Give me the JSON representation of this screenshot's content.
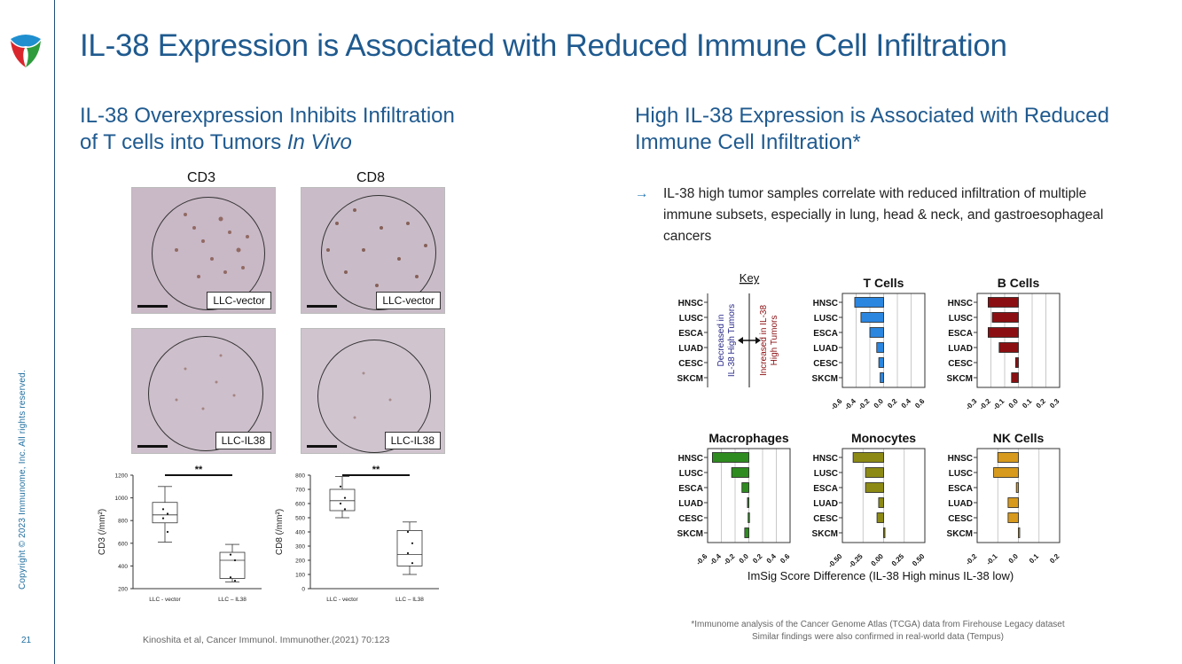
{
  "slide": {
    "title": "IL-38 Expression is Associated with Reduced Immune Cell Infiltration",
    "page_number": "21",
    "copyright": "Copyright © 2023 Immunome, Inc. All rights reserved."
  },
  "left": {
    "subtitle_line1": "IL-38 Overexpression Inhibits Infiltration",
    "subtitle_line2_prefix": "of T cells into Tumors ",
    "subtitle_line2_italic": "In Vivo",
    "col_cd3": "CD3",
    "col_cd8": "CD8",
    "panels": [
      {
        "label": "LLC-vector"
      },
      {
        "label": "LLC-vector"
      },
      {
        "label": "LLC-IL38"
      },
      {
        "label": "LLC-IL38"
      }
    ],
    "footnote": "Kinoshita et al, Cancer Immunol. Immunother.(2021) 70:123"
  },
  "right": {
    "subtitle_line1": "High IL-38 Expression is Associated with Reduced",
    "subtitle_line2": "Immune Cell Infiltration*",
    "bullet_arrow": "→",
    "bullet": "IL-38 high tumor samples correlate with reduced infiltration of multiple immune subsets, especially in lung, head & neck, and gastroesophageal cancers",
    "footnote_line1": "*Immunome analysis of the Cancer Genome Atlas (TCGA) data from Firehouse Legacy dataset",
    "footnote_line2": "Similar findings were also confirmed in real-world data (Tempus)"
  },
  "key": {
    "title": "Key",
    "left_text_1": "Decreased in",
    "left_text_2": "IL-38 High Tumors",
    "right_text_1": "Increased in IL-38",
    "right_text_2": "High Tumors"
  },
  "colors": {
    "title": "#1f5a8f",
    "t_cells": "#2b86e0",
    "b_cells": "#8b0f12",
    "macrophages": "#2e8b1f",
    "monocytes": "#8c8a14",
    "nk_cells": "#d89a1c",
    "key_blue": "#2a2a8a",
    "key_red": "#8b0f12"
  },
  "chart_data": [
    {
      "type": "bar",
      "title": "T Cells",
      "categories": [
        "HNSC",
        "LUSC",
        "ESCA",
        "LUAD",
        "CESC",
        "SKCM"
      ],
      "values": [
        -0.42,
        -0.33,
        -0.2,
        -0.1,
        -0.07,
        -0.05
      ],
      "xlim": [
        -0.6,
        0.6
      ],
      "xticks": [
        "-0.6",
        "-0.4",
        "-0.2",
        "0.0",
        "0.2",
        "0.4",
        "0.6"
      ],
      "xticks_num": [
        -0.6,
        -0.4,
        -0.2,
        0.0,
        0.2,
        0.4,
        0.6
      ],
      "color_key": "t_cells"
    },
    {
      "type": "bar",
      "title": "B Cells",
      "categories": [
        "HNSC",
        "LUSC",
        "ESCA",
        "LUAD",
        "CESC",
        "SKCM"
      ],
      "values": [
        -0.22,
        -0.19,
        -0.22,
        -0.14,
        -0.02,
        -0.05
      ],
      "xlim": [
        -0.3,
        0.3
      ],
      "xticks": [
        "-0.3",
        "-0.2",
        "-0.1",
        "0.0",
        "0.1",
        "0.2",
        "0.3"
      ],
      "xticks_num": [
        -0.3,
        -0.2,
        -0.1,
        0.0,
        0.1,
        0.2,
        0.3
      ],
      "color_key": "b_cells"
    },
    {
      "type": "bar",
      "title": "Macrophages",
      "categories": [
        "HNSC",
        "LUSC",
        "ESCA",
        "LUAD",
        "CESC",
        "SKCM"
      ],
      "values": [
        -0.53,
        -0.25,
        -0.1,
        -0.02,
        -0.01,
        -0.06
      ],
      "xlim": [
        -0.6,
        0.6
      ],
      "xticks": [
        "-0.6",
        "-0.4",
        "-0.2",
        "0.0",
        "0.2",
        "0.4",
        "0.6"
      ],
      "xticks_num": [
        -0.6,
        -0.4,
        -0.2,
        0.0,
        0.2,
        0.4,
        0.6
      ],
      "color_key": "macrophages"
    },
    {
      "type": "bar",
      "title": "Monocytes",
      "categories": [
        "HNSC",
        "LUSC",
        "ESCA",
        "LUAD",
        "CESC",
        "SKCM"
      ],
      "values": [
        -0.37,
        -0.22,
        -0.22,
        -0.06,
        -0.08,
        0.0
      ],
      "xlim": [
        -0.5,
        0.5
      ],
      "xticks": [
        "-0.50",
        "-0.25",
        "0.00",
        "0.25",
        "0.50"
      ],
      "xticks_num": [
        -0.5,
        -0.25,
        0.0,
        0.25,
        0.5
      ],
      "color_key": "monocytes"
    },
    {
      "type": "bar",
      "title": "NK Cells",
      "categories": [
        "HNSC",
        "LUSC",
        "ESCA",
        "LUAD",
        "CESC",
        "SKCM"
      ],
      "values": [
        -0.1,
        -0.12,
        -0.01,
        -0.05,
        -0.05,
        0.005
      ],
      "xlim": [
        -0.2,
        0.2
      ],
      "xticks": [
        "-0.2",
        "-0.1",
        "0.0",
        "0.1",
        "0.2"
      ],
      "xticks_num": [
        -0.2,
        -0.1,
        0.0,
        0.1,
        0.2
      ],
      "color_key": "nk_cells"
    },
    {
      "type": "box",
      "ylabel": "CD3 (/mm²)",
      "yticks": [
        "200",
        "400",
        "600",
        "800",
        "1000",
        "1200"
      ],
      "ylim": [
        200,
        1200
      ],
      "categories": [
        "LLC - vector",
        "LLC – IL38"
      ],
      "boxes": [
        {
          "min": 610,
          "q1": 780,
          "median": 850,
          "q3": 960,
          "max": 1100,
          "points": [
            900,
            860,
            820,
            700
          ]
        },
        {
          "min": 260,
          "q1": 290,
          "median": 450,
          "q3": 520,
          "max": 590,
          "points": [
            500,
            450,
            300,
            270
          ]
        }
      ],
      "significance": "**"
    },
    {
      "type": "box",
      "ylabel": "CD8 (/mm²)",
      "yticks": [
        "0",
        "100",
        "200",
        "300",
        "400",
        "500",
        "600",
        "700",
        "800"
      ],
      "ylim": [
        0,
        800
      ],
      "categories": [
        "LLC - vector",
        "LLC – IL38"
      ],
      "boxes": [
        {
          "min": 500,
          "q1": 550,
          "median": 620,
          "q3": 700,
          "max": 790,
          "points": [
            720,
            640,
            600,
            560
          ]
        },
        {
          "min": 100,
          "q1": 160,
          "median": 240,
          "q3": 410,
          "max": 470,
          "points": [
            400,
            320,
            250,
            180
          ]
        }
      ],
      "significance": "**"
    }
  ],
  "xaxis_label": "ImSig Score Difference (IL-38 High minus IL-38 low)"
}
